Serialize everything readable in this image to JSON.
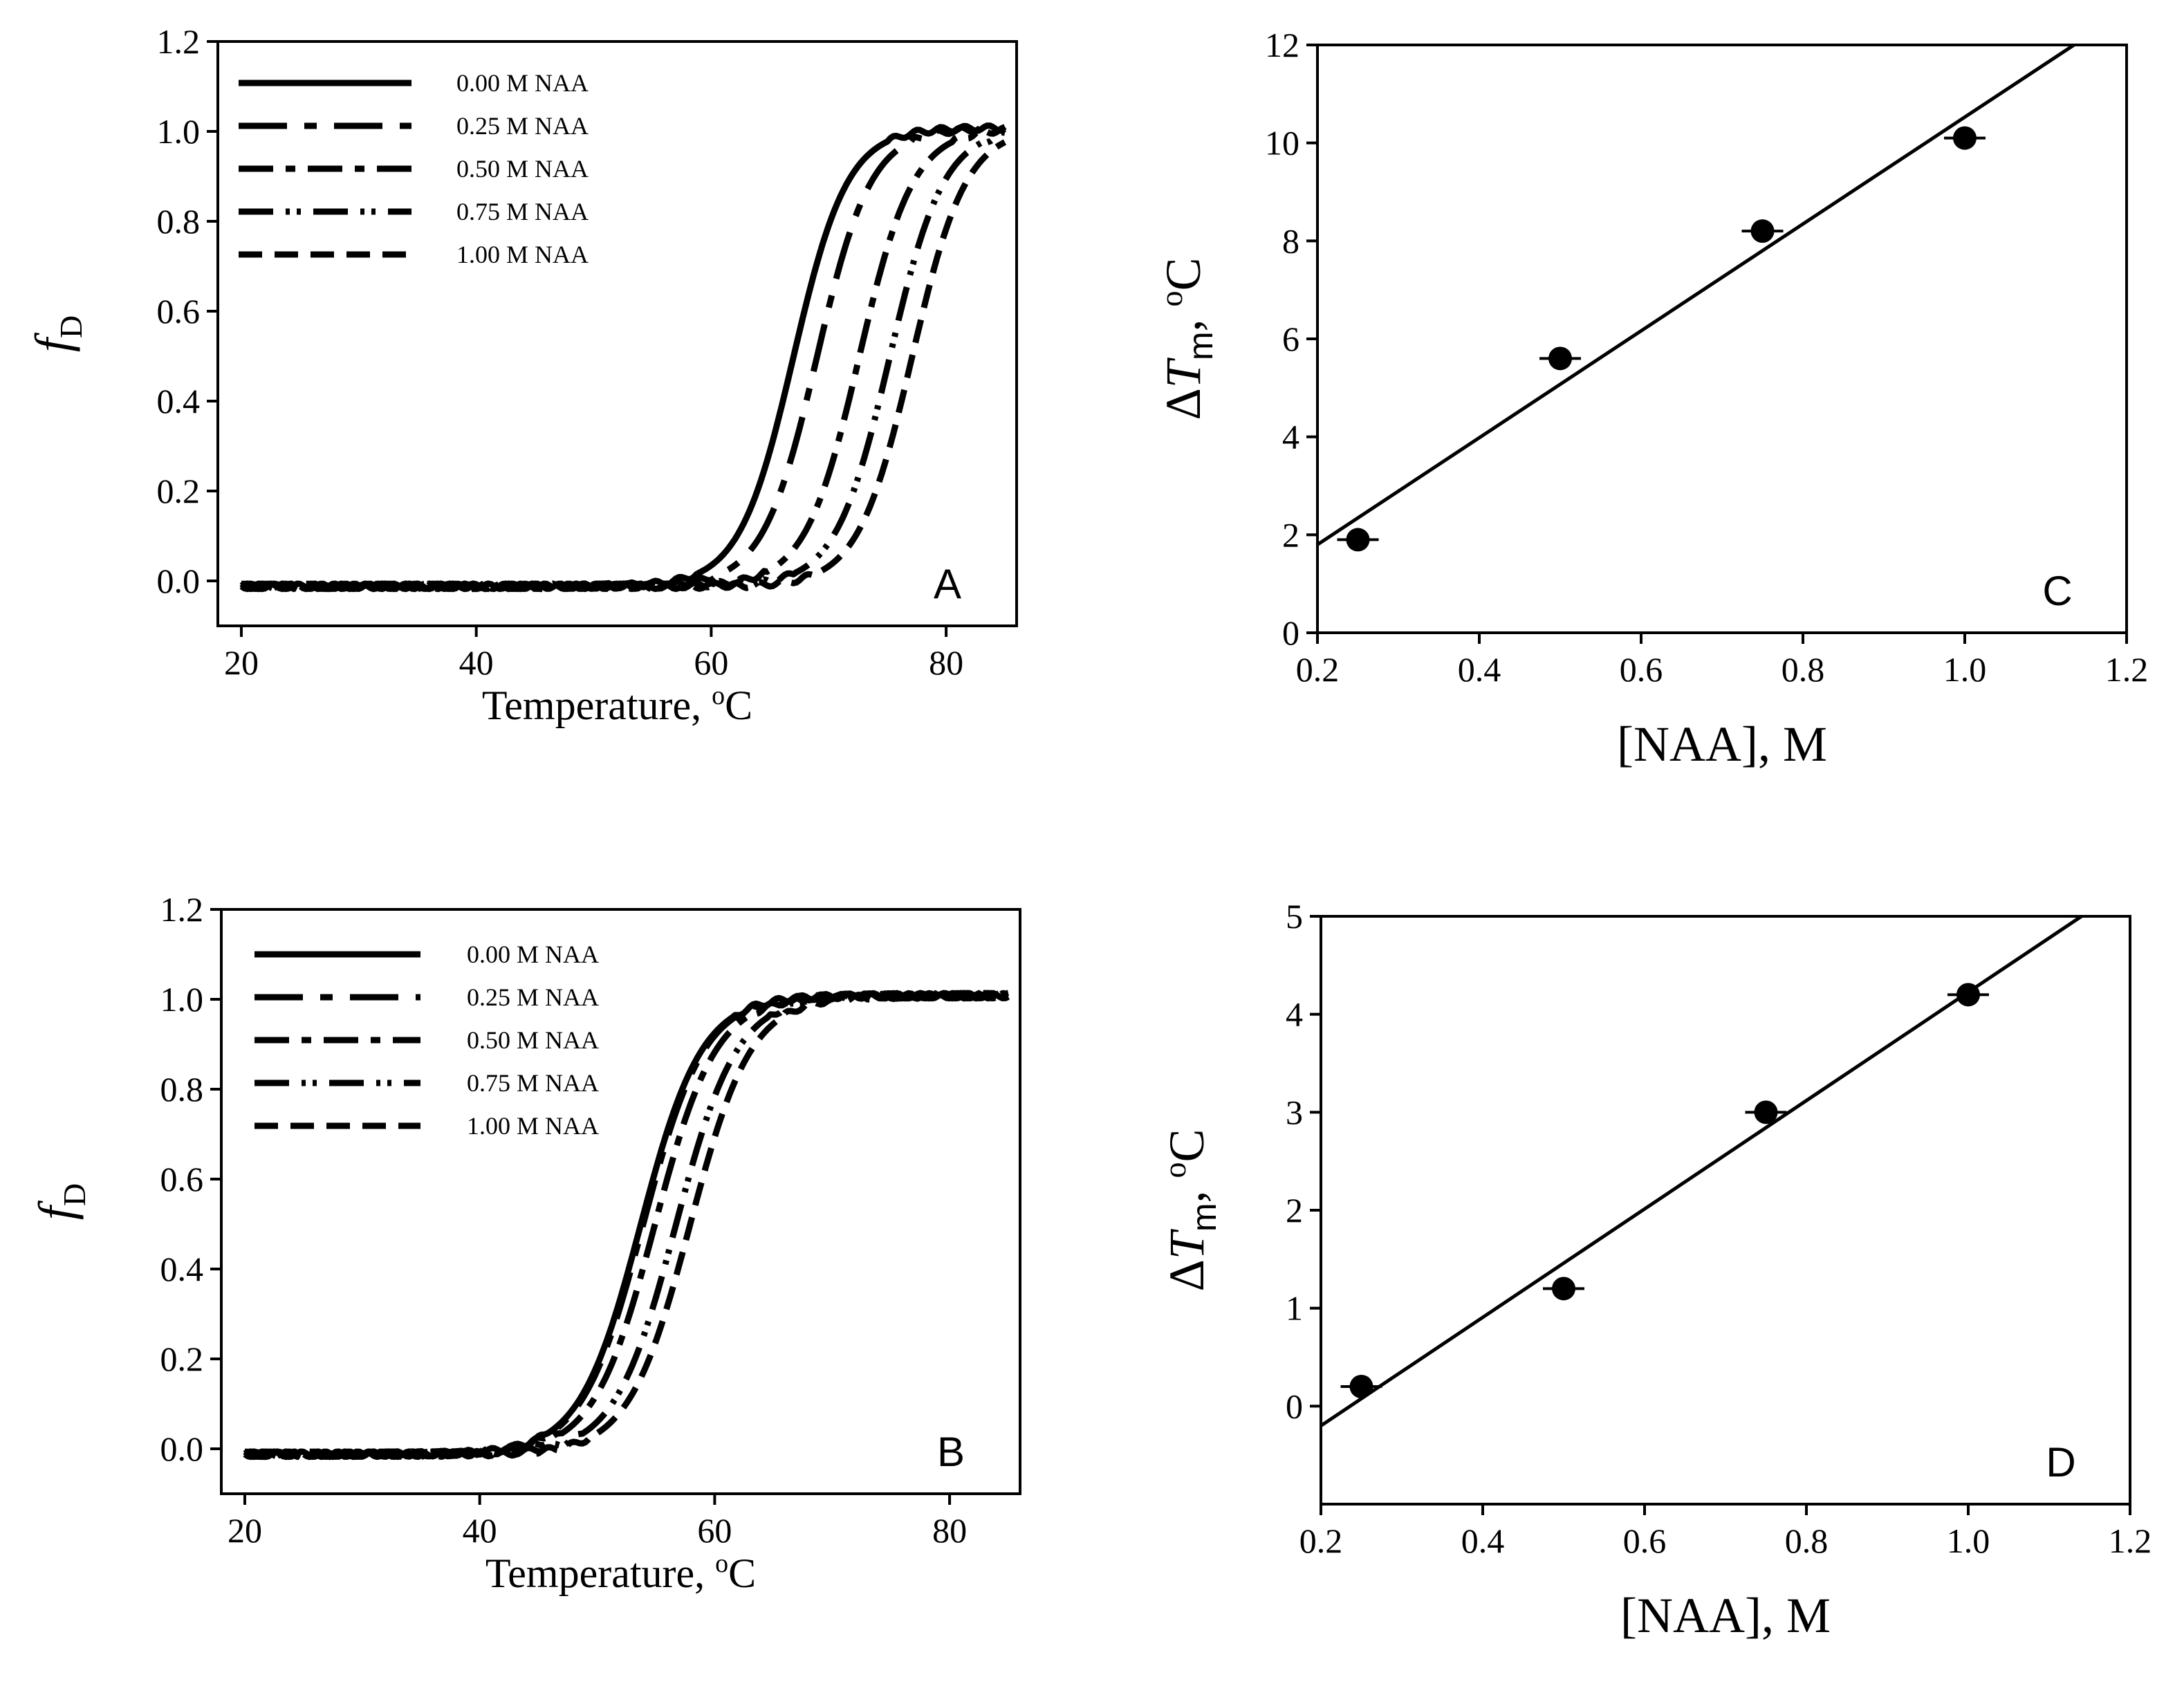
{
  "chart_data": [
    {
      "id": "A",
      "type": "line",
      "panel_label": "A",
      "xlabel": "Temperature, ",
      "xlabel_unit": "C",
      "xlabel_sup": "o",
      "ylabel": "f",
      "ylabel_sub": "D",
      "xlim": [
        18,
        86
      ],
      "ylim": [
        -0.1,
        1.2
      ],
      "xticks": [
        20,
        40,
        60,
        80
      ],
      "xtick_labels": [
        "20",
        "40",
        "60",
        "80"
      ],
      "yticks": [
        0.0,
        0.2,
        0.4,
        0.6,
        0.8,
        1.0,
        1.2
      ],
      "ytick_labels": [
        "0.0",
        "0.2",
        "0.4",
        "0.6",
        "0.8",
        "1.0",
        "1.2"
      ],
      "legend_position": "top-left",
      "series": [
        {
          "name": "0.00 M NAA",
          "tm": 67.0,
          "width": 2.3,
          "x_start": 20,
          "x_end": 85
        },
        {
          "name": "0.25 M NAA",
          "tm": 69.0,
          "width": 2.3,
          "x_start": 20,
          "x_end": 85
        },
        {
          "name": "0.50 M NAA",
          "tm": 72.6,
          "width": 2.3,
          "x_start": 20,
          "x_end": 85
        },
        {
          "name": "0.75 M NAA",
          "tm": 75.2,
          "width": 2.3,
          "x_start": 20,
          "x_end": 85
        },
        {
          "name": "1.00 M NAA",
          "tm": 77.1,
          "width": 2.3,
          "x_start": 20,
          "x_end": 85
        }
      ]
    },
    {
      "id": "B",
      "type": "line",
      "panel_label": "B",
      "xlabel": "Temperature, ",
      "xlabel_unit": "C",
      "xlabel_sup": "o",
      "ylabel": "f",
      "ylabel_sub": "D",
      "xlim": [
        18,
        86
      ],
      "ylim": [
        -0.1,
        1.2
      ],
      "xticks": [
        20,
        40,
        60,
        80
      ],
      "xtick_labels": [
        "20",
        "40",
        "60",
        "80"
      ],
      "yticks": [
        0.0,
        0.2,
        0.4,
        0.6,
        0.8,
        1.0,
        1.2
      ],
      "ytick_labels": [
        "0.0",
        "0.2",
        "0.4",
        "0.6",
        "0.8",
        "1.0",
        "1.2"
      ],
      "legend_position": "top-left",
      "series": [
        {
          "name": "0.00 M NAA",
          "tm": 53.7,
          "width": 2.6,
          "x_start": 20,
          "x_end": 85
        },
        {
          "name": "0.25 M NAA",
          "tm": 53.9,
          "width": 2.6,
          "x_start": 20,
          "x_end": 85
        },
        {
          "name": "0.50 M NAA",
          "tm": 54.9,
          "width": 2.6,
          "x_start": 20,
          "x_end": 85
        },
        {
          "name": "0.75 M NAA",
          "tm": 56.7,
          "width": 2.6,
          "x_start": 20,
          "x_end": 85
        },
        {
          "name": "1.00 M NAA",
          "tm": 57.9,
          "width": 2.6,
          "x_start": 20,
          "x_end": 85
        }
      ]
    },
    {
      "id": "C",
      "type": "scatter",
      "panel_label": "C",
      "xlabel": "[NAA], M",
      "ylabel_prefix": "Δ",
      "ylabel_var": "T",
      "ylabel_sub": "m",
      "ylabel_suffix": ", ",
      "ylabel_sup": "o",
      "ylabel_unit": "C",
      "xlim": [
        0.2,
        1.2
      ],
      "ylim": [
        0,
        12
      ],
      "xticks": [
        0.2,
        0.4,
        0.6,
        0.8,
        1.0,
        1.2
      ],
      "xtick_labels": [
        "0.2",
        "0.4",
        "0.6",
        "0.8",
        "1.0",
        "1.2"
      ],
      "yticks": [
        0,
        2,
        4,
        6,
        8,
        10,
        12
      ],
      "ytick_labels": [
        "0",
        "2",
        "4",
        "6",
        "8",
        "10",
        "12"
      ],
      "points": {
        "x": [
          0.25,
          0.5,
          0.75,
          1.0
        ],
        "y": [
          1.9,
          5.6,
          8.2,
          10.1
        ]
      },
      "fit": {
        "x": [
          0.2,
          1.135
        ],
        "y": [
          1.8,
          12.0
        ]
      }
    },
    {
      "id": "D",
      "type": "scatter",
      "panel_label": "D",
      "xlabel": "[NAA], M",
      "ylabel_prefix": "Δ",
      "ylabel_var": "T",
      "ylabel_sub": "m",
      "ylabel_suffix": ", ",
      "ylabel_sup": "o",
      "ylabel_unit": "C",
      "xlim": [
        0.2,
        1.2
      ],
      "ylim": [
        -1,
        5
      ],
      "xticks": [
        0.2,
        0.4,
        0.6,
        0.8,
        1.0,
        1.2
      ],
      "xtick_labels": [
        "0.2",
        "0.4",
        "0.6",
        "0.8",
        "1.0",
        "1.2"
      ],
      "yticks": [
        0,
        1,
        2,
        3,
        4,
        5
      ],
      "ytick_labels": [
        "0",
        "1",
        "2",
        "3",
        "4",
        "5"
      ],
      "points": {
        "x": [
          0.25,
          0.5,
          0.75,
          1.0
        ],
        "y": [
          0.2,
          1.2,
          3.0,
          4.2
        ]
      },
      "fit": {
        "x": [
          0.2,
          1.14
        ],
        "y": [
          -0.2,
          5.0
        ]
      }
    }
  ]
}
